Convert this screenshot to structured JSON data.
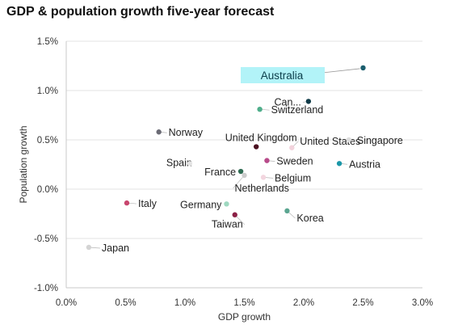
{
  "title": "GDP & population growth five-year forecast",
  "chart_data": {
    "type": "scatter",
    "xlabel": "GDP growth",
    "ylabel": "Population growth",
    "xlim": [
      0.0,
      3.0
    ],
    "ylim": [
      -1.0,
      1.5
    ],
    "x_ticks": [
      "0.0%",
      "0.5%",
      "1.0%",
      "1.5%",
      "2.0%",
      "2.5%",
      "3.0%"
    ],
    "y_ticks": [
      "-1.0%",
      "-0.5%",
      "0.0%",
      "0.5%",
      "1.0%",
      "1.5%"
    ],
    "grid": "horizontal",
    "highlight": "Australia",
    "highlight_color": "#b2f3f8",
    "points": [
      {
        "label": "Australia",
        "x": 2.5,
        "y": 1.23,
        "color": "#1b5e6e"
      },
      {
        "label": "Can...",
        "x": 2.04,
        "y": 0.89,
        "color": "#0f3b48"
      },
      {
        "label": "Switzerland",
        "x": 1.63,
        "y": 0.81,
        "color": "#4fae8b"
      },
      {
        "label": "Norway",
        "x": 0.78,
        "y": 0.58,
        "color": "#6b6b75"
      },
      {
        "label": "United Kingdom",
        "x": 1.6,
        "y": 0.43,
        "color": "#4a1020"
      },
      {
        "label": "United States",
        "x": 1.9,
        "y": 0.42,
        "color": "#f2d3dc"
      },
      {
        "label": "Singapore",
        "x": 2.38,
        "y": 0.5,
        "color": "#dddddd"
      },
      {
        "label": "Sweden",
        "x": 1.69,
        "y": 0.29,
        "color": "#b84a8a"
      },
      {
        "label": "Spain",
        "x": 1.04,
        "y": 0.26,
        "color": "#e4e4e4"
      },
      {
        "label": "Austria",
        "x": 2.3,
        "y": 0.26,
        "color": "#1a97a8"
      },
      {
        "label": "France",
        "x": 1.47,
        "y": 0.18,
        "color": "#2e6b52"
      },
      {
        "label": "Belgium",
        "x": 1.66,
        "y": 0.12,
        "color": "#f3d6df"
      },
      {
        "label": "Netherlands",
        "x": 1.5,
        "y": 0.14,
        "color": "#cccccc"
      },
      {
        "label": "Italy",
        "x": 0.51,
        "y": -0.14,
        "color": "#c8466e"
      },
      {
        "label": "Germany",
        "x": 1.35,
        "y": -0.15,
        "color": "#9ed8c0"
      },
      {
        "label": "Taiwan",
        "x": 1.42,
        "y": -0.26,
        "color": "#8b1f45"
      },
      {
        "label": "Korea",
        "x": 1.86,
        "y": -0.22,
        "color": "#5aa590"
      },
      {
        "label": "Japan",
        "x": 0.19,
        "y": -0.59,
        "color": "#d4d4d4"
      }
    ]
  }
}
